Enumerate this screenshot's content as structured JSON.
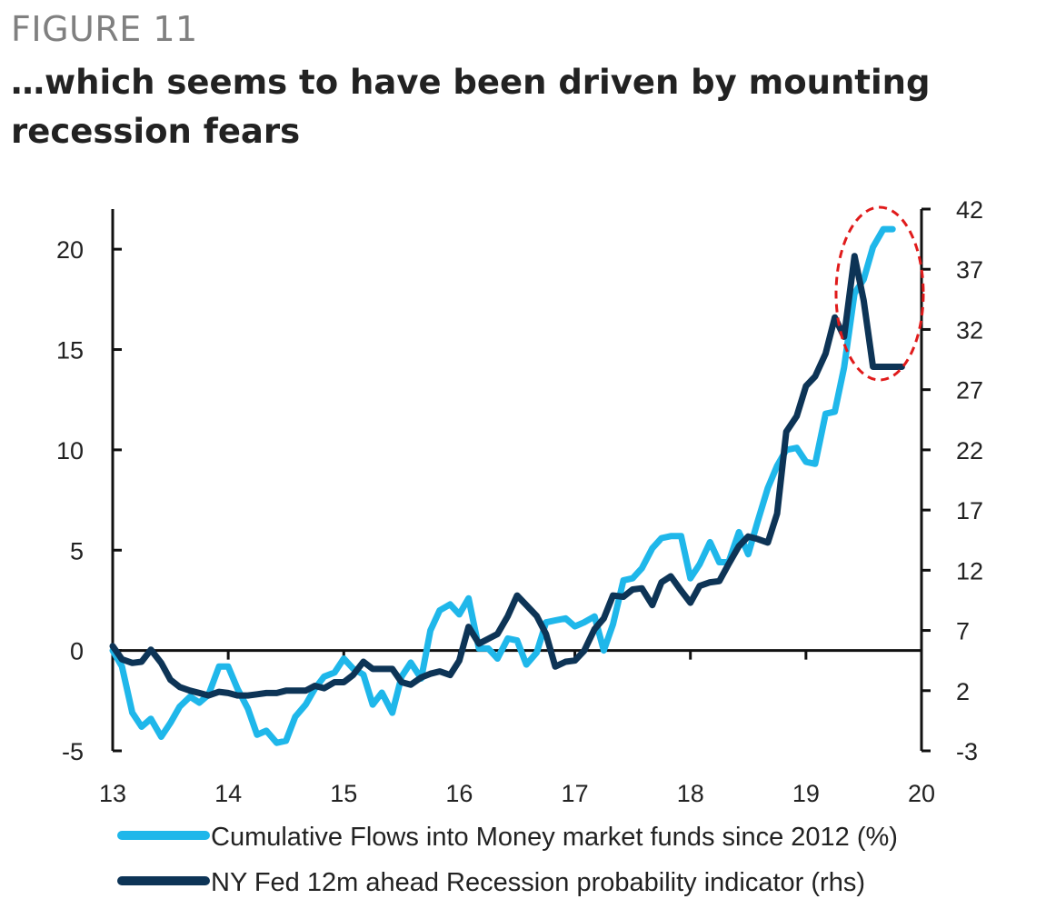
{
  "figure": {
    "label": "FIGURE 11",
    "title": "…which seems to have been driven by mounting recession fears"
  },
  "chart_data": {
    "type": "line",
    "title": "…which seems to have been driven by mounting recession fears",
    "xlabel": "",
    "ylabel": "",
    "x_ticks": [
      "13",
      "14",
      "15",
      "16",
      "17",
      "18",
      "19",
      "20"
    ],
    "x_range": [
      2013,
      2020
    ],
    "y_left": {
      "range": [
        -5,
        22
      ],
      "ticks": [
        -5,
        0,
        5,
        10,
        15,
        20
      ],
      "tick_labels": [
        "-5",
        "0",
        "5",
        "10",
        "15",
        "20"
      ]
    },
    "y_right": {
      "range": [
        -3,
        42
      ],
      "ticks": [
        -3,
        2,
        7,
        12,
        17,
        22,
        27,
        32,
        37,
        42
      ],
      "tick_labels": [
        "-3",
        "2",
        "7",
        "12",
        "17",
        "22",
        "27",
        "32",
        "37",
        "42"
      ]
    },
    "grid": false,
    "legend_position": "bottom",
    "annotation": "red dashed ellipse highlighting the 2019 peak",
    "series": [
      {
        "name": "Cumulative Flows into Money market funds since 2012 (%)",
        "axis": "left",
        "color": "#1fb7ea",
        "x": [
          2013.0,
          2013.08,
          2013.17,
          2013.25,
          2013.33,
          2013.42,
          2013.5,
          2013.58,
          2013.67,
          2013.75,
          2013.83,
          2013.92,
          2014.0,
          2014.08,
          2014.17,
          2014.25,
          2014.33,
          2014.42,
          2014.5,
          2014.58,
          2014.67,
          2014.75,
          2014.83,
          2014.92,
          2015.0,
          2015.08,
          2015.17,
          2015.25,
          2015.33,
          2015.42,
          2015.5,
          2015.58,
          2015.67,
          2015.75,
          2015.83,
          2015.92,
          2016.0,
          2016.08,
          2016.17,
          2016.25,
          2016.33,
          2016.42,
          2016.5,
          2016.58,
          2016.67,
          2016.75,
          2016.83,
          2016.92,
          2017.0,
          2017.08,
          2017.17,
          2017.25,
          2017.33,
          2017.42,
          2017.5,
          2017.58,
          2017.67,
          2017.75,
          2017.83,
          2017.92,
          2018.0,
          2018.08,
          2018.17,
          2018.25,
          2018.33,
          2018.42,
          2018.5,
          2018.58,
          2018.67,
          2018.75,
          2018.83,
          2018.92,
          2019.0,
          2019.08,
          2019.17,
          2019.25,
          2019.33,
          2019.42,
          2019.5,
          2019.58,
          2019.67,
          2019.75
        ],
        "values": [
          0,
          -0.8,
          -3.1,
          -3.8,
          -3.4,
          -4.3,
          -3.6,
          -2.8,
          -2.3,
          -2.6,
          -2.2,
          -0.8,
          -0.8,
          -1.9,
          -2.9,
          -4.2,
          -4.0,
          -4.6,
          -4.5,
          -3.3,
          -2.7,
          -1.9,
          -1.3,
          -1.1,
          -0.4,
          -0.9,
          -1.2,
          -2.7,
          -2.1,
          -3.1,
          -1.3,
          -0.6,
          -1.4,
          1.0,
          2.0,
          2.3,
          1.8,
          2.6,
          0.1,
          0.1,
          -0.4,
          0.6,
          0.5,
          -0.7,
          -0.1,
          1.4,
          1.5,
          1.6,
          1.2,
          1.4,
          1.7,
          0.0,
          1.3,
          3.5,
          3.6,
          4.1,
          5.1,
          5.6,
          5.7,
          5.7,
          3.6,
          4.3,
          5.4,
          4.4,
          4.4,
          5.9,
          4.8,
          6.4,
          8.1,
          9.2,
          10.0,
          10.1,
          9.4,
          9.3,
          11.8,
          11.9,
          14.1,
          17.8,
          18.5,
          20.1,
          21.0,
          21.0
        ]
      },
      {
        "name": "NY Fed 12m ahead Recession probability indicator (rhs)",
        "axis": "right",
        "color": "#0d3456",
        "x": [
          2013.0,
          2013.08,
          2013.17,
          2013.25,
          2013.33,
          2013.42,
          2013.5,
          2013.58,
          2013.67,
          2013.75,
          2013.83,
          2013.92,
          2014.0,
          2014.08,
          2014.17,
          2014.25,
          2014.33,
          2014.42,
          2014.5,
          2014.58,
          2014.67,
          2014.75,
          2014.83,
          2014.92,
          2015.0,
          2015.08,
          2015.17,
          2015.25,
          2015.33,
          2015.42,
          2015.5,
          2015.58,
          2015.67,
          2015.75,
          2015.83,
          2015.92,
          2016.0,
          2016.08,
          2016.17,
          2016.25,
          2016.33,
          2016.42,
          2016.5,
          2016.58,
          2016.67,
          2016.75,
          2016.83,
          2016.92,
          2017.0,
          2017.08,
          2017.17,
          2017.25,
          2017.33,
          2017.42,
          2017.5,
          2017.58,
          2017.67,
          2017.75,
          2017.83,
          2017.92,
          2018.0,
          2018.08,
          2018.17,
          2018.25,
          2018.33,
          2018.42,
          2018.5,
          2018.58,
          2018.67,
          2018.75,
          2018.83,
          2018.92,
          2019.0,
          2019.08,
          2019.17,
          2019.25,
          2019.33,
          2019.42,
          2019.5,
          2019.58,
          2019.67,
          2019.75,
          2019.83
        ],
        "values": [
          5.7,
          4.6,
          4.3,
          4.4,
          5.4,
          4.3,
          2.9,
          2.3,
          2.0,
          1.8,
          1.6,
          1.9,
          1.8,
          1.6,
          1.6,
          1.7,
          1.8,
          1.8,
          2.0,
          2.0,
          2.0,
          2.4,
          2.2,
          2.7,
          2.7,
          3.3,
          4.4,
          3.8,
          3.8,
          3.8,
          2.7,
          2.5,
          3.1,
          3.4,
          3.6,
          3.3,
          4.5,
          7.3,
          5.9,
          6.3,
          6.7,
          8.2,
          9.9,
          9.1,
          8.2,
          6.7,
          4.0,
          4.4,
          4.5,
          5.3,
          7.1,
          8.0,
          9.9,
          9.8,
          10.4,
          10.5,
          9.1,
          11.0,
          11.5,
          10.3,
          9.3,
          10.7,
          11.0,
          11.1,
          12.5,
          14.0,
          14.8,
          14.6,
          14.3,
          16.7,
          23.5,
          24.8,
          27.3,
          28.1,
          30.0,
          33.0,
          31.4,
          38.1,
          34.4,
          28.9,
          28.9,
          28.9,
          28.9
        ]
      }
    ]
  }
}
